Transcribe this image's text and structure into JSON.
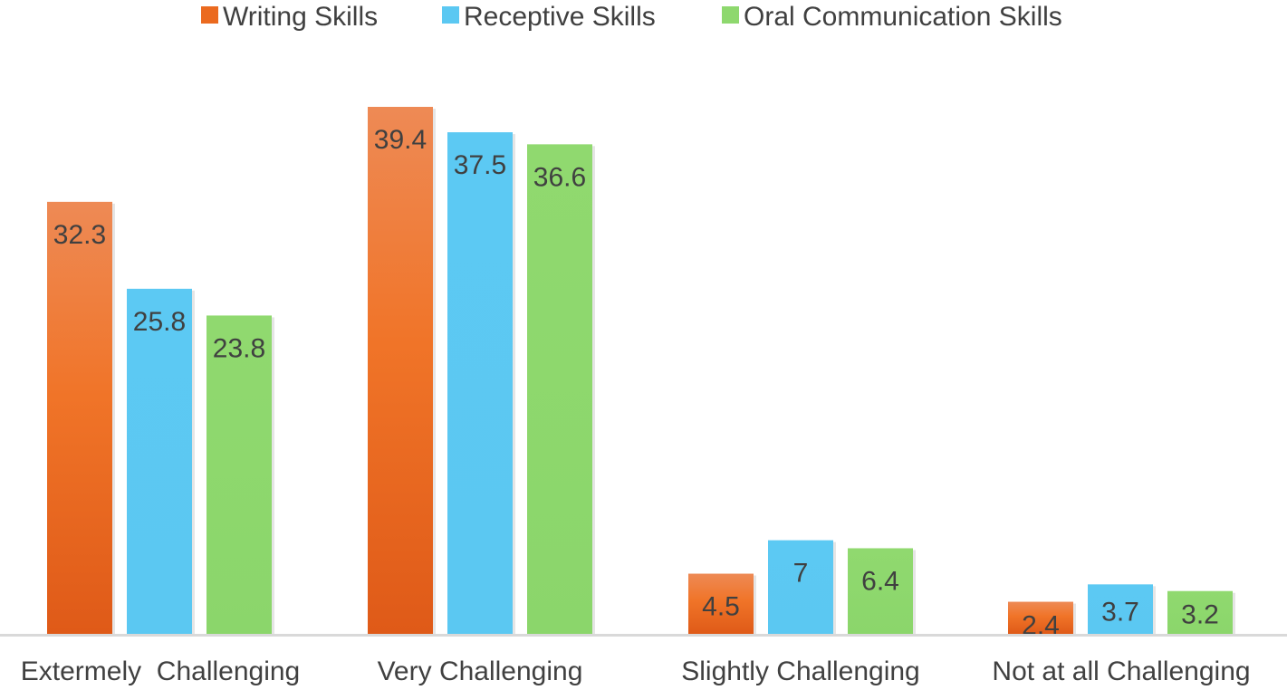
{
  "chart_data": {
    "type": "bar",
    "categories": [
      "Extermely  Challenging",
      "Very Challenging",
      "Slightly Challenging",
      "Not at all Challenging"
    ],
    "series": [
      {
        "name": "Writing Skills",
        "color": "#EB6A1F",
        "values": [
          32.3,
          39.4,
          4.5,
          2.4
        ]
      },
      {
        "name": "Receptive Skills",
        "color": "#5BC8F2",
        "values": [
          25.8,
          37.5,
          7,
          3.7
        ]
      },
      {
        "name": "Oral Communication Skills",
        "color": "#8ED86E",
        "values": [
          23.8,
          36.6,
          6.4,
          3.2
        ]
      }
    ],
    "title": "",
    "xlabel": "",
    "ylabel": "",
    "ylim": [
      0,
      41
    ],
    "grid": false,
    "legend": "top-center",
    "data_labels": true
  }
}
